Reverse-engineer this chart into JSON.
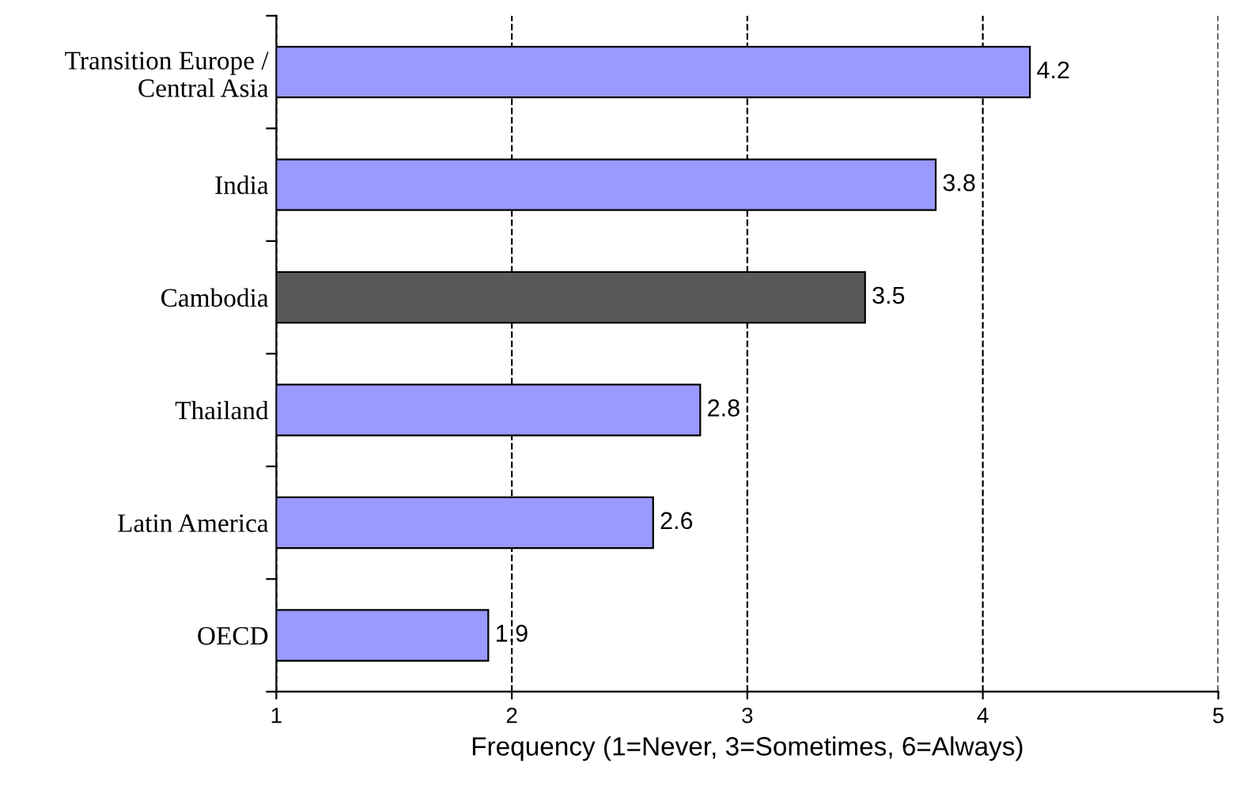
{
  "chart_data": {
    "type": "bar",
    "orientation": "horizontal",
    "xlabel": "Frequency (1=Never, 3=Sometimes, 6=Always)",
    "categories": [
      "Transition Europe /\nCentral Asia",
      "India",
      "Cambodia",
      "Thailand",
      "Latin America",
      "OECD"
    ],
    "values": [
      4.2,
      3.8,
      3.5,
      2.8,
      2.6,
      1.9
    ],
    "colors": [
      "#9999ff",
      "#9999ff",
      "#595959",
      "#9999ff",
      "#9999ff",
      "#9999ff"
    ],
    "xlim": [
      1,
      5
    ],
    "xticks": [
      1,
      2,
      3,
      4,
      5
    ],
    "grid": "x",
    "data_labels": true
  }
}
